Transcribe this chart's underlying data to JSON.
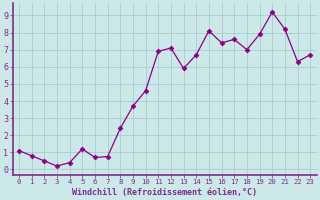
{
  "x": [
    0,
    1,
    2,
    3,
    4,
    5,
    6,
    7,
    8,
    9,
    10,
    11,
    12,
    13,
    14,
    15,
    16,
    17,
    18,
    19,
    20,
    21,
    22,
    23
  ],
  "y": [
    1.1,
    0.8,
    0.5,
    0.2,
    0.4,
    1.2,
    0.7,
    0.75,
    2.4,
    3.7,
    4.6,
    6.9,
    7.1,
    5.9,
    6.7,
    8.1,
    7.4,
    7.6,
    7.0,
    7.9,
    9.2,
    8.2,
    6.3,
    6.7
  ],
  "line_color": "#8b008b",
  "marker": "D",
  "marker_size": 2.5,
  "bg_color": "#cce8e8",
  "grid_color": "#aacccc",
  "xlabel": "Windchill (Refroidissement éolien,°C)",
  "xlabel_color": "#7b2d8b",
  "ylim": [
    -0.3,
    9.7
  ],
  "xlim": [
    -0.5,
    23.5
  ],
  "yticks": [
    0,
    1,
    2,
    3,
    4,
    5,
    6,
    7,
    8,
    9
  ],
  "xticks": [
    0,
    1,
    2,
    3,
    4,
    5,
    6,
    7,
    8,
    9,
    10,
    11,
    12,
    13,
    14,
    15,
    16,
    17,
    18,
    19,
    20,
    21,
    22,
    23
  ],
  "tick_label_color": "#7b2d8b",
  "spine_color": "#7b2d8b",
  "xaxis_line_color": "#7b2d8b"
}
